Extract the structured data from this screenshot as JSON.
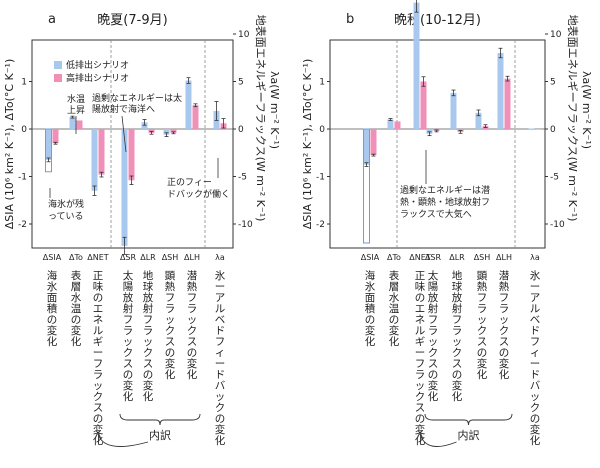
{
  "colors": {
    "low": "#a9c8ee",
    "high": "#f08fb7",
    "low_edge": "#6f9fd8",
    "axis": "#333333",
    "err": "#333333"
  },
  "chart_data": [
    {
      "type": "bar",
      "panel_letter": "a",
      "title": "晩夏(7-9月)",
      "ylabel_left": "ΔSIA (10⁶ km² K⁻¹), ΔTo(°C K⁻¹)",
      "ylabel_right": "地表面エネルギーフラックス(W m⁻² K⁻¹)",
      "ylabel_right2": "λa(W m⁻² K⁻¹)",
      "ylim": [
        -2.5,
        1.2
      ],
      "right_ylim": [
        -10,
        12
      ],
      "right_ticks": [
        "10",
        "5",
        "0",
        "-5",
        "-10"
      ],
      "categories": [
        "ΔSIA",
        "ΔTo",
        "ΔNET",
        "ΔSR",
        "ΔLR",
        "ΔSH",
        "ΔLH",
        "λa"
      ],
      "category_labels": [
        "海氷面積の変化",
        "表層水温の変化",
        "正味のエネルギーフラックスの変化",
        "太陽放射フラックスの変化",
        "地球放射フラックスの変化",
        "顕熱フラックスの変化",
        "潜熱フラックスの変化",
        "氷ーアルベドフィードバックの変化"
      ],
      "series": [
        {
          "name": "低排出シナリオ",
          "values": [
            -0.65,
            0.25,
            -6.5,
            -12.3,
            0.7,
            -0.6,
            5.1,
            1.9
          ]
        },
        {
          "name": "高排出シナリオ",
          "values": [
            -0.3,
            0.18,
            -4.8,
            -5.4,
            -0.4,
            -0.4,
            2.5,
            0.6
          ]
        }
      ],
      "outline_value": -0.9,
      "annotations": [
        "水温上昇",
        "過剰なエネルギーは太陽放射で海洋へ",
        "海氷が残っている",
        "正のフィードバックが働く"
      ],
      "bracket_label": "内訳"
    },
    {
      "type": "bar",
      "panel_letter": "b",
      "title": "晩秋(10-12月)",
      "ylabel_left": "ΔSIA (10⁶ km² K⁻¹), ΔTo(°C K⁻¹)",
      "ylabel_right": "地表面エネルギーフラックス(W m⁻² K⁻¹)",
      "ylabel_right2": "λa(W m⁻² K⁻¹)",
      "ylim": [
        -2.5,
        1.2
      ],
      "right_ylim": [
        -10,
        12
      ],
      "right_ticks": [
        "10",
        "5",
        "0",
        "-5",
        "-10"
      ],
      "categories": [
        "ΔSIA",
        "ΔTo",
        "ΔNET",
        "ΔSR",
        "ΔLR",
        "ΔSH",
        "ΔLH",
        "λa"
      ],
      "category_labels": [
        "海氷面積の変化",
        "表層水温の変化",
        "正味のエネルギーフラックスの変化",
        "太陽放射フラックスの変化",
        "地球放射フラックスの変化",
        "顕熱フラックスの変化",
        "潜熱フラックスの変化",
        "氷ーアルベドフィードバックの変化"
      ],
      "series": [
        {
          "name": "低排出シナリオ",
          "values": [
            -0.75,
            0.2,
            13.3,
            -0.5,
            3.8,
            1.7,
            8.0,
            0.05
          ]
        },
        {
          "name": "高排出シナリオ",
          "values": [
            -0.55,
            0.16,
            5.0,
            -0.2,
            -0.3,
            0.3,
            5.3,
            0.0
          ]
        }
      ],
      "outline_value": -2.4,
      "annotations": [
        "過剰なエネルギーは潜熱・顕熱・地球放射フラックスで大気へ"
      ],
      "bracket_label": "内訳"
    }
  ]
}
